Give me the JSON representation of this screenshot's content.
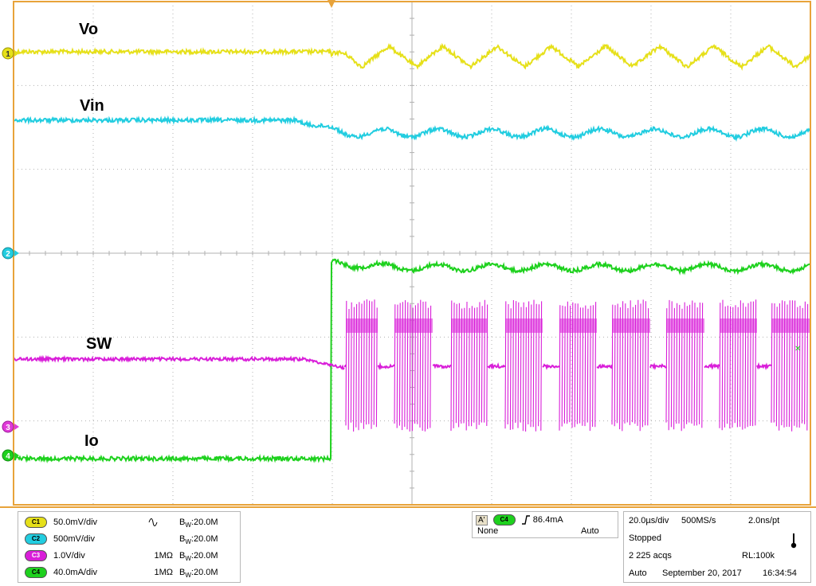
{
  "traces": [
    {
      "id": "vo",
      "label": "Vo",
      "color": "#e6e01a",
      "marker": "1",
      "marker_color": "#e6e01a"
    },
    {
      "id": "vin",
      "label": "Vin",
      "color": "#22cde0",
      "marker": "2",
      "marker_color": "#22cde0"
    },
    {
      "id": "sw",
      "label": "SW",
      "color": "#d91ed9",
      "marker": "3",
      "marker_color": "#e03ad8"
    },
    {
      "id": "io",
      "label": "Io",
      "color": "#1ed11e",
      "marker": "4",
      "marker_color": "#1ed11e"
    }
  ],
  "channels": [
    {
      "badge": "C1",
      "badge_color": "#e6e01a",
      "scale": "50.0mV/div",
      "impedance": "",
      "bw": "20.0M",
      "icon": "sine-icon"
    },
    {
      "badge": "C2",
      "badge_color": "#22cde0",
      "scale": "500mV/div",
      "impedance": "",
      "bw": "20.0M"
    },
    {
      "badge": "C3",
      "badge_color": "#d91ed9",
      "scale": "1.0V/div",
      "impedance": "1MΩ",
      "bw": "20.0M"
    },
    {
      "badge": "C4",
      "badge_color": "#1ed11e",
      "scale": "40.0mA/div",
      "impedance": "1MΩ",
      "bw": "20.0M"
    }
  ],
  "bw_prefix": "B",
  "bw_sub": "W",
  "trigger": {
    "a_label": "A'",
    "source_badge": "C4",
    "source_color": "#1ed11e",
    "level": "86.4mA",
    "slope_icon": "rising-edge-icon",
    "row2_left": "None",
    "row2_right": "Auto"
  },
  "acquisition": {
    "timebase": "20.0µs/div",
    "sample_rate": "500MS/s",
    "resolution": "2.0ns/pt",
    "state": "Stopped",
    "acqs": "2 225 acqs",
    "record_length": "RL:100k",
    "mode": "Auto",
    "date": "September 20, 2017",
    "time": "16:34:54",
    "icon": "thermometer-icon"
  },
  "colors": {
    "frame": "#e8a33a",
    "grid": "#b0b0b0"
  }
}
